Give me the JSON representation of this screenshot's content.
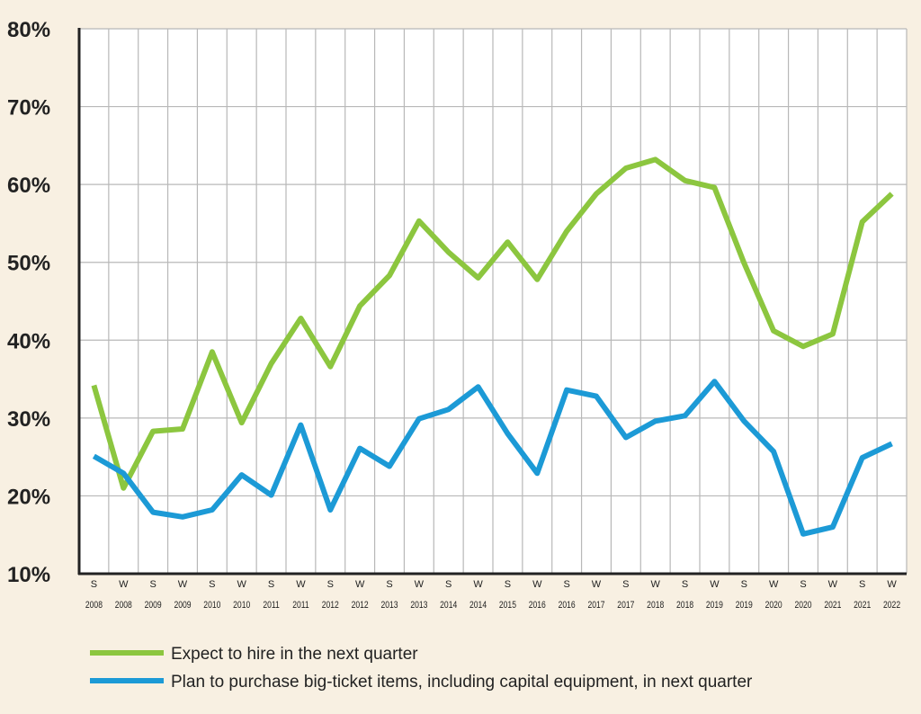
{
  "chart_data": {
    "type": "line",
    "title": "",
    "xlabel": "",
    "ylabel": "",
    "ylim": [
      10,
      80
    ],
    "yticks": [
      "10%",
      "20%",
      "30%",
      "40%",
      "50%",
      "60%",
      "70%",
      "80%"
    ],
    "grid": true,
    "legend_position": "bottom-left",
    "categories": [
      {
        "season": "S",
        "year": "2008"
      },
      {
        "season": "W",
        "year": "2008"
      },
      {
        "season": "S",
        "year": "2009"
      },
      {
        "season": "W",
        "year": "2009"
      },
      {
        "season": "S",
        "year": "2010"
      },
      {
        "season": "W",
        "year": "2010"
      },
      {
        "season": "S",
        "year": "2011"
      },
      {
        "season": "W",
        "year": "2011"
      },
      {
        "season": "S",
        "year": "2012"
      },
      {
        "season": "W",
        "year": "2012"
      },
      {
        "season": "S",
        "year": "2013"
      },
      {
        "season": "W",
        "year": "2013"
      },
      {
        "season": "S",
        "year": "2014"
      },
      {
        "season": "W",
        "year": "2014"
      },
      {
        "season": "S",
        "year": "2015"
      },
      {
        "season": "W",
        "year": "2016"
      },
      {
        "season": "S",
        "year": "2016"
      },
      {
        "season": "W",
        "year": "2017"
      },
      {
        "season": "S",
        "year": "2017"
      },
      {
        "season": "W",
        "year": "2018"
      },
      {
        "season": "S",
        "year": "2018"
      },
      {
        "season": "W",
        "year": "2019"
      },
      {
        "season": "S",
        "year": "2019"
      },
      {
        "season": "W",
        "year": "2020"
      },
      {
        "season": "S",
        "year": "2020"
      },
      {
        "season": "W",
        "year": "2021"
      },
      {
        "season": "S",
        "year": "2021"
      },
      {
        "season": "W",
        "year": "2022"
      }
    ],
    "series": [
      {
        "name": "Expect to hire in the next quarter",
        "color": "#8cc63f",
        "values": [
          34.2,
          21.0,
          28.3,
          28.6,
          38.5,
          29.4,
          37.0,
          42.8,
          36.6,
          44.4,
          48.3,
          55.3,
          51.3,
          48.0,
          52.6,
          47.8,
          54.0,
          58.8,
          62.1,
          63.2,
          60.5,
          59.6,
          49.9,
          41.2,
          39.2,
          40.8,
          55.2,
          58.8
        ]
      },
      {
        "name": "Plan to purchase big-ticket items, including capital equipment, in next quarter",
        "color": "#1c9ad6",
        "values": [
          25.1,
          22.9,
          17.9,
          17.3,
          18.2,
          22.7,
          20.1,
          29.1,
          18.2,
          26.1,
          23.8,
          29.9,
          31.1,
          34.0,
          28.0,
          22.9,
          33.6,
          32.8,
          27.5,
          29.6,
          30.3,
          34.7,
          29.6,
          25.7,
          15.1,
          16.0,
          24.9,
          26.7
        ]
      }
    ]
  }
}
